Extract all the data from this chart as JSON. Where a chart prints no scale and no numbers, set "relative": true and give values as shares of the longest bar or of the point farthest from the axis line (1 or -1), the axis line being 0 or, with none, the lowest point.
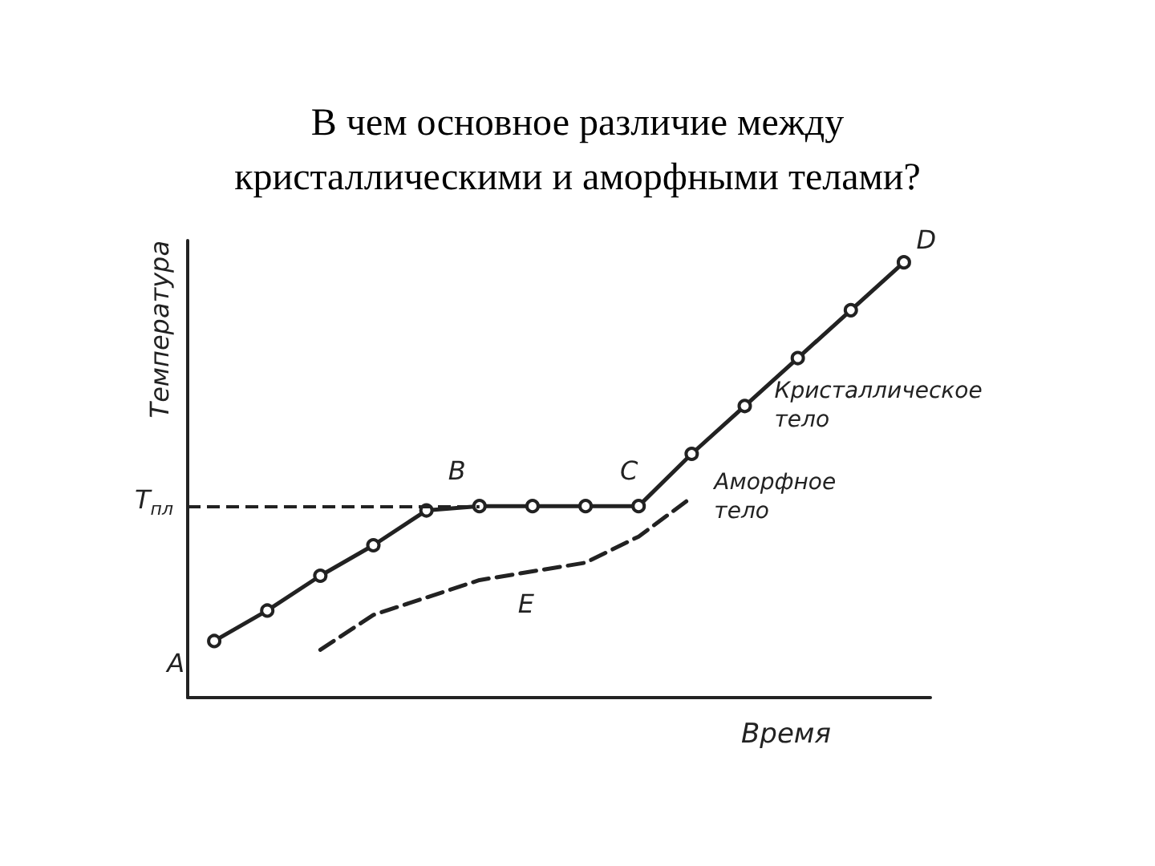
{
  "chart_data": {
    "type": "line",
    "title": "В чем основное различие между\nкристаллическими и аморфными телами?",
    "xlabel": "Время",
    "ylabel": "Температура",
    "relative": true,
    "categories": [
      null,
      null,
      null,
      null,
      null,
      null,
      null,
      null,
      null,
      null,
      null,
      null,
      null,
      null
    ],
    "series": [
      {
        "name": "Кристаллическое тело",
        "color": "#222222",
        "marker": "circle",
        "line_style": "solid",
        "values": [
          0.13,
          0.2,
          0.28,
          0.35,
          0.43,
          0.44,
          0.44,
          0.44,
          0.44,
          0.56,
          0.67,
          0.78,
          0.89,
          1
        ]
      },
      {
        "name": "Аморфное тело",
        "color": "#222222",
        "marker": "none",
        "line_style": "dashed",
        "values": [
          null,
          null,
          0.11,
          0.19,
          0.23,
          0.27,
          0.29,
          0.31,
          0.37,
          0.46,
          null,
          null,
          null,
          null
        ]
      }
    ],
    "ref_lines": [
      {
        "axis": "y",
        "value": 0.44,
        "label": "T$_{пл}$",
        "line_style": "dashed",
        "color": "#222222"
      }
    ],
    "annotations": [
      "A",
      "B",
      "C",
      "D",
      "E"
    ],
    "grid": false,
    "legend": false
  }
}
